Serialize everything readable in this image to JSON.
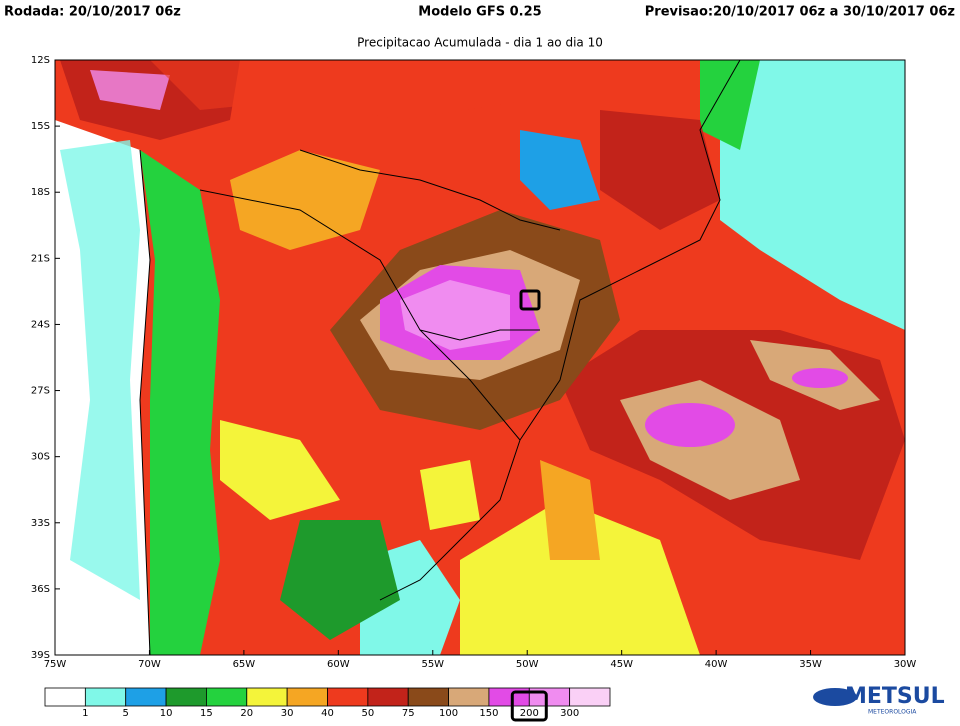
{
  "header": {
    "run": "Rodada: 20/10/2017 06z",
    "model": "Modelo GFS 0.25",
    "forecast": "Previsao:20/10/2017 06z a 30/10/2017 06z"
  },
  "subtitle": "Precipitacao Acumulada - dia 1 ao dia 10",
  "map": {
    "lat_ticks": [
      {
        "value": -12,
        "label": "12S"
      },
      {
        "value": -15,
        "label": "15S"
      },
      {
        "value": -18,
        "label": "18S"
      },
      {
        "value": -21,
        "label": "21S"
      },
      {
        "value": -24,
        "label": "24S"
      },
      {
        "value": -27,
        "label": "27S"
      },
      {
        "value": -30,
        "label": "30S"
      },
      {
        "value": -33,
        "label": "33S"
      },
      {
        "value": -36,
        "label": "36S"
      },
      {
        "value": -39,
        "label": "39S"
      }
    ],
    "lon_ticks": [
      {
        "value": -75,
        "label": "75W"
      },
      {
        "value": -70,
        "label": "70W"
      },
      {
        "value": -65,
        "label": "65W"
      },
      {
        "value": -60,
        "label": "60W"
      },
      {
        "value": -55,
        "label": "55W"
      },
      {
        "value": -50,
        "label": "50W"
      },
      {
        "value": -45,
        "label": "45W"
      },
      {
        "value": -40,
        "label": "40W"
      },
      {
        "value": -35,
        "label": "35W"
      },
      {
        "value": -30,
        "label": "30W"
      }
    ],
    "lat_range": [
      -12,
      -39
    ],
    "lon_range": [
      -75,
      -30
    ]
  },
  "colorbar": {
    "thresholds": [
      1,
      5,
      10,
      15,
      20,
      30,
      40,
      50,
      75,
      100,
      150,
      200,
      300
    ],
    "colors": [
      "#ffffff",
      "#80f8e8",
      "#1ea0e6",
      "#1e9a2c",
      "#24d23e",
      "#f4f43a",
      "#f5a623",
      "#ee3a1e",
      "#c2231a",
      "#8a4a1a",
      "#d8a878",
      "#e24be6",
      "#f08cf0",
      "#fad0f6"
    ],
    "highlight": 200
  },
  "logo": {
    "name": "METSUL",
    "tagline": "METEOROLOGIA"
  }
}
